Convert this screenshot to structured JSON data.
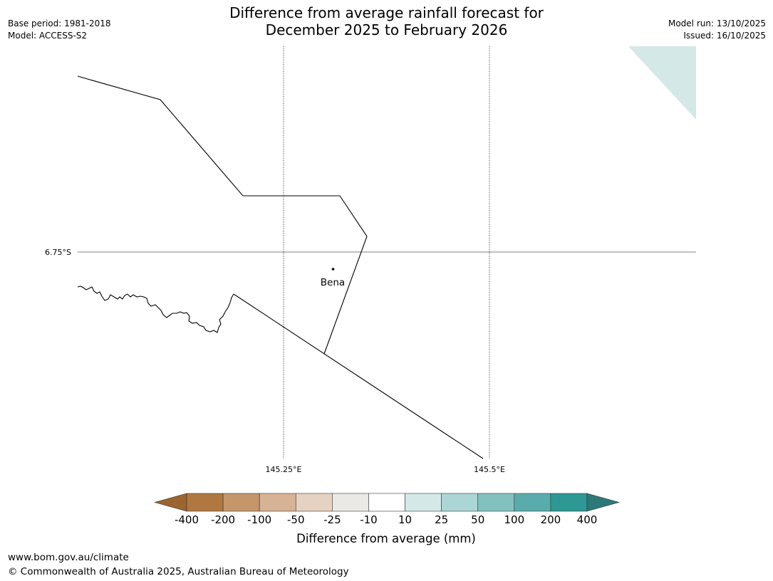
{
  "header": {
    "title_line1": "Difference from average rainfall forecast for",
    "title_line2": "December 2025 to February 2026",
    "base_period": "Base period: 1981-2018",
    "model": "Model: ACCESS-S2",
    "model_run": "Model run: 13/10/2025",
    "issued": "Issued: 16/10/2025"
  },
  "map": {
    "lat_label": "6.75°S",
    "lon_labels": [
      "145.25°E",
      "145.5°E"
    ],
    "places": [
      {
        "name": "Bena"
      }
    ]
  },
  "legend": {
    "title": "Difference from average (mm)",
    "tick_labels": [
      "-400",
      "-200",
      "-100",
      "-50",
      "-25",
      "-10",
      "10",
      "25",
      "50",
      "100",
      "200",
      "400"
    ],
    "colors": [
      "#9c6530",
      "#b07840",
      "#c4966a",
      "#d6b394",
      "#e6d2c2",
      "#ebe9e6",
      "#ffffff",
      "#d5e8e8",
      "#acd6d6",
      "#83c1be",
      "#5aacac",
      "#2e9894",
      "#2d7878"
    ],
    "forecast_area_color": "#d5e8e8"
  },
  "footer": {
    "url": "www.bom.gov.au/climate",
    "copyright": "© Commonwealth of Australia 2025, Australian Bureau of Meteorology"
  }
}
